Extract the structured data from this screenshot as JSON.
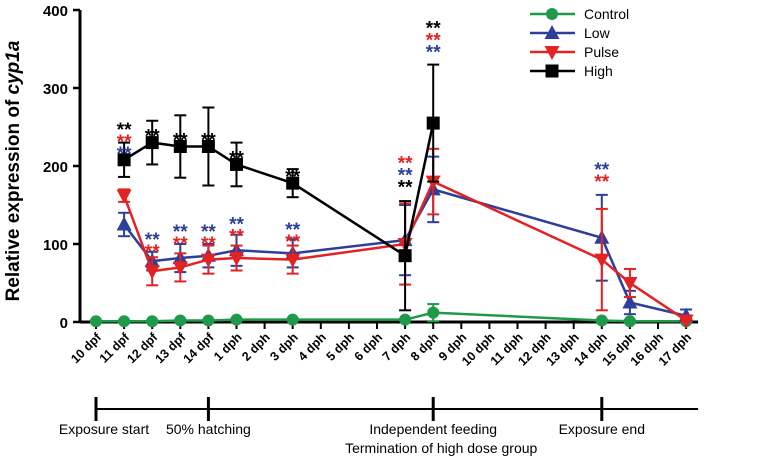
{
  "chart_data": {
    "type": "line",
    "title": "",
    "xlabel": "",
    "ylabel": "Relative expression of ",
    "ylabel_italic": "cyp1a",
    "ylim": [
      0,
      400
    ],
    "yticks": [
      0,
      100,
      200,
      300,
      400
    ],
    "categories": [
      "10 dpf",
      "11 dpf",
      "12 dpf",
      "13 dpf",
      "14 dpf",
      "1 dph",
      "2 dph",
      "3 dph",
      "4 dph",
      "5 dph",
      "6 dph",
      "7 dph",
      "8 dph",
      "9 dph",
      "10 dph",
      "11 dph",
      "12 dph",
      "13 dph",
      "14 dph",
      "15 dph",
      "16 dph",
      "17 dph"
    ],
    "series": [
      {
        "name": "Control",
        "color": "#1f9a48",
        "marker": "circle",
        "points": [
          {
            "x": 0,
            "y": 1,
            "err": 1
          },
          {
            "x": 1,
            "y": 1,
            "err": 1
          },
          {
            "x": 2,
            "y": 1,
            "err": 1
          },
          {
            "x": 3,
            "y": 2,
            "err": 1
          },
          {
            "x": 4,
            "y": 2,
            "err": 1
          },
          {
            "x": 5,
            "y": 3,
            "err": 1
          },
          {
            "x": 7,
            "y": 3,
            "err": 1
          },
          {
            "x": 11,
            "y": 3,
            "err": 1
          },
          {
            "x": 12,
            "y": 12,
            "err": 11
          },
          {
            "x": 18,
            "y": 2,
            "err": 1
          },
          {
            "x": 19,
            "y": 1,
            "err": 1
          },
          {
            "x": 21,
            "y": 1,
            "err": 1
          }
        ]
      },
      {
        "name": "Low",
        "color": "#2e3f9b",
        "marker": "triangle-up",
        "points": [
          {
            "x": 1,
            "y": 125,
            "err": 15
          },
          {
            "x": 2,
            "y": 78,
            "err": 12
          },
          {
            "x": 3,
            "y": 82,
            "err": 18
          },
          {
            "x": 4,
            "y": 85,
            "err": 15
          },
          {
            "x": 5,
            "y": 92,
            "err": 20
          },
          {
            "x": 7,
            "y": 88,
            "err": 18
          },
          {
            "x": 11,
            "y": 105,
            "err": 45
          },
          {
            "x": 12,
            "y": 170,
            "err": 42
          },
          {
            "x": 18,
            "y": 108,
            "err": 55
          },
          {
            "x": 19,
            "y": 25,
            "err": 15
          },
          {
            "x": 21,
            "y": 8,
            "err": 8
          }
        ]
      },
      {
        "name": "Pulse",
        "color": "#e32222",
        "marker": "triangle-down",
        "points": [
          {
            "x": 1,
            "y": 162,
            "err": 8
          },
          {
            "x": 2,
            "y": 65,
            "err": 18
          },
          {
            "x": 3,
            "y": 70,
            "err": 18
          },
          {
            "x": 4,
            "y": 80,
            "err": 18
          },
          {
            "x": 5,
            "y": 82,
            "err": 16
          },
          {
            "x": 7,
            "y": 80,
            "err": 18
          },
          {
            "x": 11,
            "y": 100,
            "err": 52
          },
          {
            "x": 12,
            "y": 180,
            "err": 42
          },
          {
            "x": 18,
            "y": 80,
            "err": 65
          },
          {
            "x": 19,
            "y": 50,
            "err": 18
          },
          {
            "x": 21,
            "y": 2,
            "err": 2
          }
        ]
      },
      {
        "name": "High",
        "color": "#000000",
        "marker": "square",
        "points": [
          {
            "x": 1,
            "y": 208,
            "err": 22
          },
          {
            "x": 2,
            "y": 230,
            "err": 28
          },
          {
            "x": 3,
            "y": 225,
            "err": 40
          },
          {
            "x": 4,
            "y": 225,
            "err": 50
          },
          {
            "x": 5,
            "y": 202,
            "err": 28
          },
          {
            "x": 7,
            "y": 178,
            "err": 18
          },
          {
            "x": 11,
            "y": 85,
            "err": 70
          },
          {
            "x": 12,
            "y": 255,
            "err": 75
          }
        ]
      }
    ],
    "significance": [
      {
        "x": 1,
        "y": 208,
        "rows": [
          {
            "text": "**",
            "color": "#000000"
          },
          {
            "text": "**",
            "color": "#e32222"
          },
          {
            "text": "**",
            "color": "#2e3f9b"
          }
        ]
      },
      {
        "x": 2,
        "y": 230,
        "rows": [
          {
            "text": "**",
            "color": "#000000"
          }
        ]
      },
      {
        "x": 3,
        "y": 225,
        "rows": [
          {
            "text": "**",
            "color": "#000000"
          }
        ]
      },
      {
        "x": 4,
        "y": 225,
        "rows": [
          {
            "text": "**",
            "color": "#000000"
          }
        ]
      },
      {
        "x": 5,
        "y": 202,
        "rows": [
          {
            "text": "**",
            "color": "#000000"
          }
        ]
      },
      {
        "x": 7,
        "y": 178,
        "rows": [
          {
            "text": "**",
            "color": "#000000"
          }
        ]
      },
      {
        "x": 2,
        "y": 82,
        "rows": [
          {
            "text": "**",
            "color": "#2e3f9b"
          },
          {
            "text": "**",
            "color": "#e32222"
          }
        ]
      },
      {
        "x": 3,
        "y": 92,
        "rows": [
          {
            "text": "**",
            "color": "#2e3f9b"
          },
          {
            "text": "**",
            "color": "#e32222"
          }
        ]
      },
      {
        "x": 4,
        "y": 92,
        "rows": [
          {
            "text": "**",
            "color": "#2e3f9b"
          },
          {
            "text": "**",
            "color": "#e32222"
          }
        ]
      },
      {
        "x": 5,
        "y": 102,
        "rows": [
          {
            "text": "**",
            "color": "#2e3f9b"
          },
          {
            "text": "**",
            "color": "#e32222"
          }
        ]
      },
      {
        "x": 7,
        "y": 95,
        "rows": [
          {
            "text": "**",
            "color": "#2e3f9b"
          },
          {
            "text": "**",
            "color": "#e32222"
          }
        ]
      },
      {
        "x": 11,
        "y": 165,
        "rows": [
          {
            "text": "**",
            "color": "#e32222"
          },
          {
            "text": "**",
            "color": "#2e3f9b"
          },
          {
            "text": "**",
            "color": "#000000"
          }
        ]
      },
      {
        "x": 12,
        "y": 338,
        "rows": [
          {
            "text": "**",
            "color": "#000000"
          },
          {
            "text": "**",
            "color": "#e32222"
          },
          {
            "text": "**",
            "color": "#2e3f9b"
          }
        ]
      },
      {
        "x": 18,
        "y": 172,
        "rows": [
          {
            "text": "**",
            "color": "#2e3f9b"
          },
          {
            "text": "**",
            "color": "#e32222"
          }
        ]
      }
    ],
    "legend_position": "top-right",
    "timeline": {
      "events": [
        {
          "x": 0,
          "label": "Exposure start",
          "align": "middle"
        },
        {
          "x": 4,
          "label": "50% hatching",
          "align": "middle"
        },
        {
          "x": 12,
          "label": "Independent feeding",
          "label2": "Termination of high dose group",
          "align": "middle"
        },
        {
          "x": 18,
          "label": "Exposure end",
          "align": "middle"
        }
      ]
    }
  }
}
